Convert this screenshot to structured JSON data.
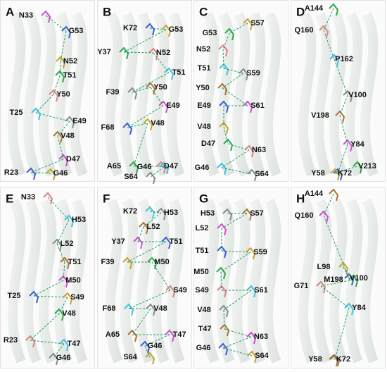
{
  "panels": [
    {
      "letter": "A",
      "labels": [
        "N33",
        "G53",
        "N52",
        "T51",
        "Y50",
        "T25",
        "E49",
        "V48",
        "D47",
        "R23",
        "G46"
      ]
    },
    {
      "letter": "B",
      "labels": [
        "K72",
        "G53",
        "Y37",
        "N52",
        "T51",
        "F39",
        "Y50",
        "E49",
        "F68",
        "V48",
        "A65",
        "D47",
        "G46",
        "S64"
      ]
    },
    {
      "letter": "C",
      "labels": [
        "S57",
        "G53",
        "N52",
        "T51",
        "S59",
        "Y50",
        "S61",
        "E49",
        "V48",
        "D47",
        "N63",
        "G46",
        "S64"
      ]
    },
    {
      "letter": "D",
      "labels": [
        "A144",
        "Q160",
        "P162",
        "V100",
        "V198",
        "Y84",
        "Y58",
        "K72",
        "V213"
      ]
    },
    {
      "letter": "E",
      "labels": [
        "N33",
        "H53",
        "L52",
        "T51",
        "M50",
        "T25",
        "S49",
        "V48",
        "R23",
        "T47",
        "G46"
      ]
    },
    {
      "letter": "F",
      "labels": [
        "K72",
        "H53",
        "L52",
        "Y37",
        "T51",
        "F39",
        "M50",
        "S49",
        "F68",
        "V48",
        "A65",
        "T47",
        "G46",
        "S64"
      ]
    },
    {
      "letter": "G",
      "labels": [
        "H53",
        "S57",
        "L52",
        "T51",
        "S59",
        "M50",
        "S49",
        "S61",
        "V48",
        "T47",
        "N63",
        "G46",
        "S64"
      ]
    },
    {
      "letter": "H",
      "labels": [
        "A144",
        "Q160",
        "V100",
        "L98",
        "M198",
        "G71",
        "Y84",
        "Y58",
        "K72"
      ]
    }
  ]
}
